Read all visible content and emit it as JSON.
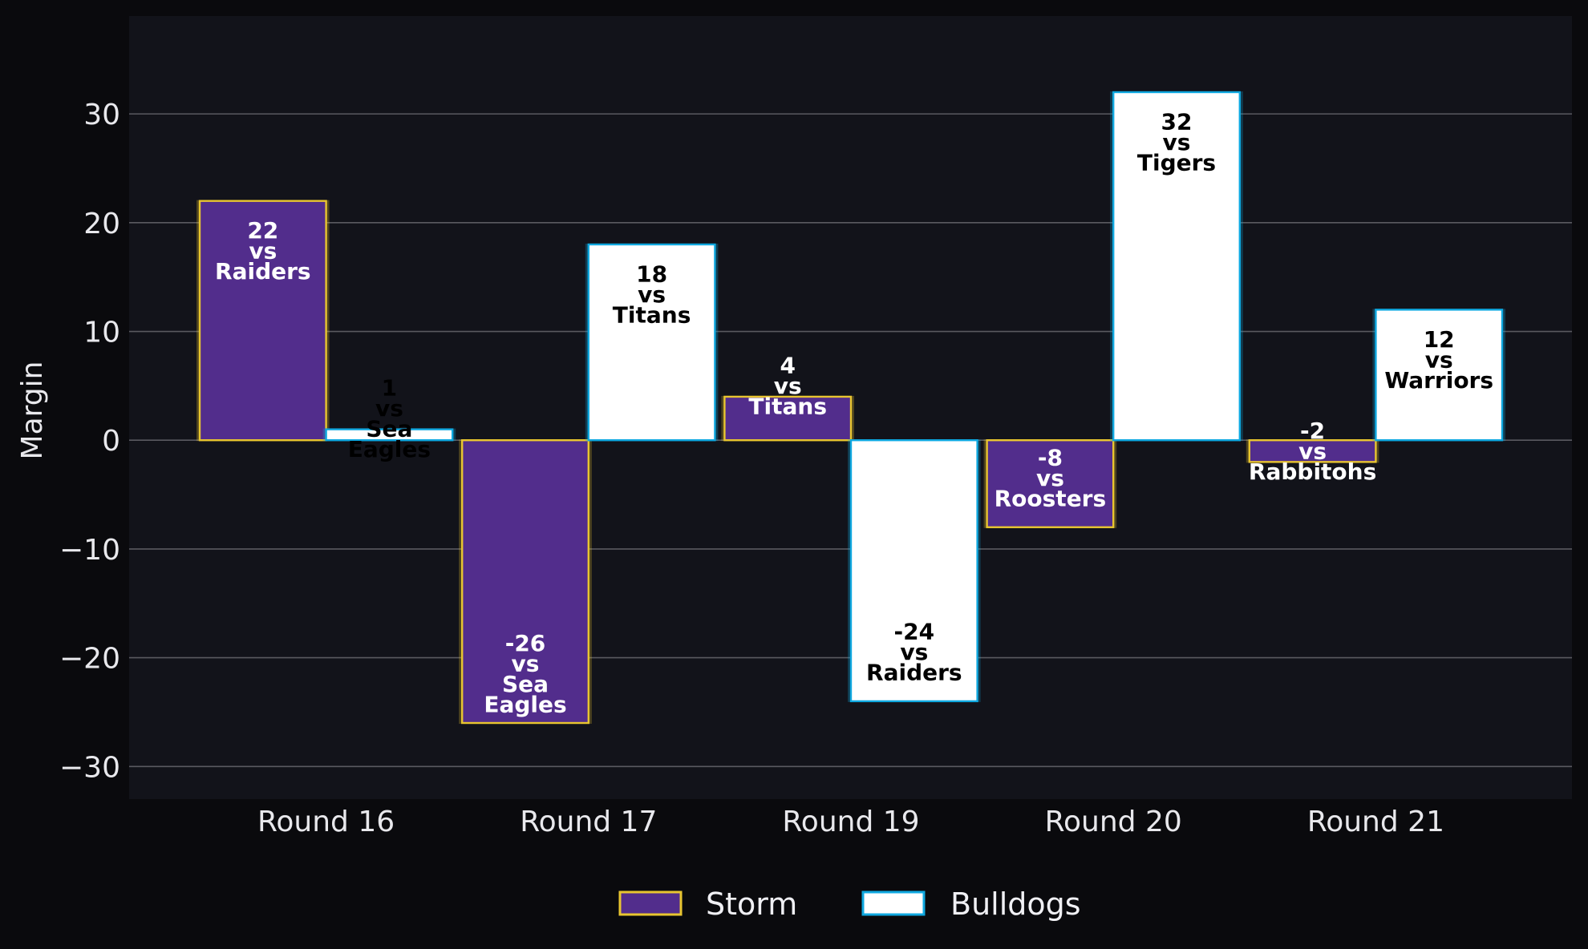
{
  "chart_data": {
    "type": "bar",
    "categories": [
      "Round 16",
      "Round 17",
      "Round 19",
      "Round 20",
      "Round 21"
    ],
    "ylabel": "Margin",
    "xlabel": "",
    "title": "",
    "ylim": [
      -33,
      39
    ],
    "yticks": [
      -30,
      -20,
      -10,
      0,
      10,
      20,
      30
    ],
    "ytick_labels": [
      "−30",
      "−20",
      "−10",
      "0",
      "10",
      "20",
      "30"
    ],
    "grid": "horizontal",
    "legend_position": "bottom-center",
    "series": [
      {
        "name": "Storm",
        "fill": "#522d8c",
        "edge": "#e8c530",
        "label_color": "#ffffff",
        "values": [
          22,
          -26,
          4,
          -8,
          -2
        ],
        "opponents": [
          "Raiders",
          "Sea Eagles",
          "Titans",
          "Roosters",
          "Rabbitohs"
        ],
        "labels": [
          [
            "22",
            "vs",
            "Raiders"
          ],
          [
            "-26",
            "vs",
            "Sea",
            "Eagles"
          ],
          [
            "4",
            "vs",
            "Titans"
          ],
          [
            "-8",
            "vs",
            "Roosters"
          ],
          [
            "-2",
            "vs",
            "Rabbitohs"
          ]
        ]
      },
      {
        "name": "Bulldogs",
        "fill": "#ffffff",
        "edge": "#0fa8e0",
        "label_color": "#000000",
        "values": [
          1,
          18,
          -24,
          32,
          12
        ],
        "opponents": [
          "Sea Eagles",
          "Titans",
          "Raiders",
          "Tigers",
          "Warriors"
        ],
        "labels": [
          [
            "1",
            "vs",
            "Sea",
            "Eagles"
          ],
          [
            "18",
            "vs",
            "Titans"
          ],
          [
            "-24",
            "vs",
            "Raiders"
          ],
          [
            "32",
            "vs",
            "Tigers"
          ],
          [
            "12",
            "vs",
            "Warriors"
          ]
        ]
      }
    ]
  },
  "colors": {
    "figure_background": "#0a0a0d",
    "plot_background": "#12131a",
    "grid": "#5a5a60",
    "text": "#e8e8ec"
  }
}
